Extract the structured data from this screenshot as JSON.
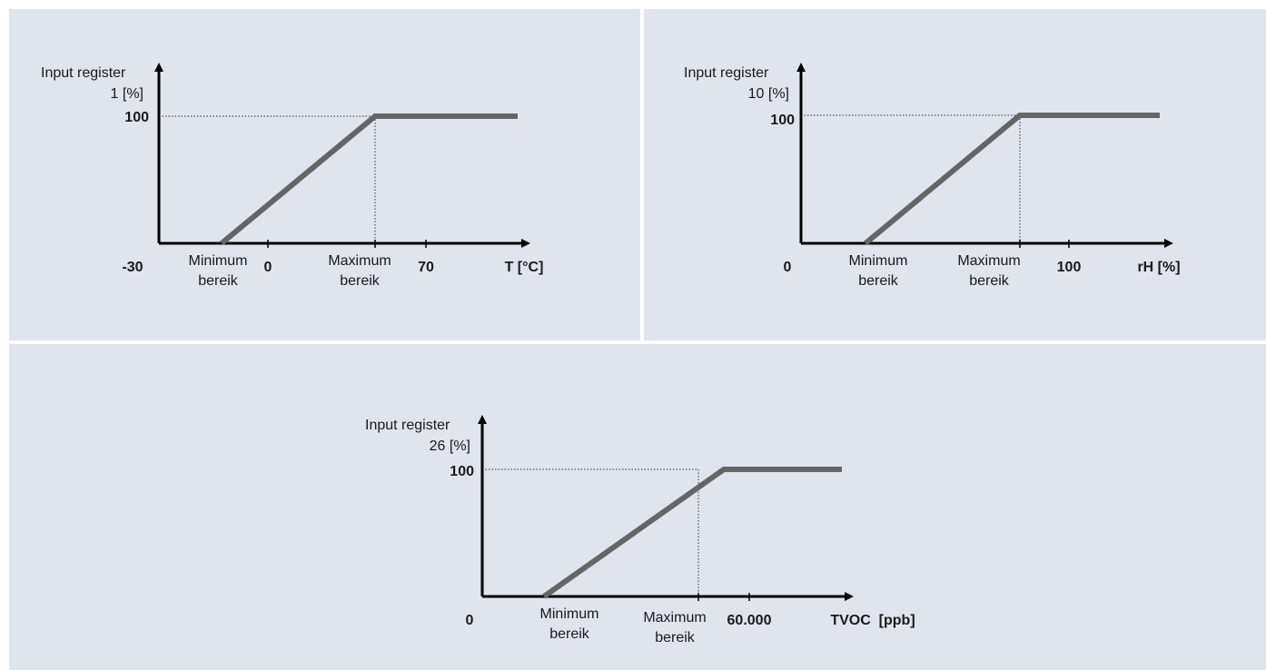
{
  "diagrams": [
    {
      "id": "temperature",
      "y_title_line1": "Input register",
      "y_title_line2": "1 [%]",
      "y_max_label": "100",
      "x_origin_label": "-30",
      "x_min_label_line1": "Minimum",
      "x_min_label_line2": "bereik",
      "x_zero_label": "0",
      "x_max_label_line1": "Maximum",
      "x_max_label_line2": "bereik",
      "x_end_value": "70",
      "x_unit": "T [°C]"
    },
    {
      "id": "humidity",
      "y_title_line1": "Input register",
      "y_title_line2": "10 [%]",
      "y_max_label": "100",
      "x_origin_label": "0",
      "x_min_label_line1": "Minimum",
      "x_min_label_line2": "bereik",
      "x_max_label_line1": "Maximum",
      "x_max_label_line2": "bereik",
      "x_end_value": "100",
      "x_unit": "rH [%]"
    },
    {
      "id": "tvoc",
      "y_title_line1": "Input register",
      "y_title_line2": "26 [%]",
      "y_max_label": "100",
      "x_origin_label": "0",
      "x_min_label_line1": "Minimum",
      "x_min_label_line2": "bereik",
      "x_max_label_line1": "Maximum",
      "x_max_label_line2": "bereik",
      "x_end_value": "60.000",
      "x_unit": "TVOC  [ppb]"
    }
  ],
  "colors": {
    "panel_background": "#e0e4ed",
    "curve": "#656565",
    "axis": "#000000"
  }
}
